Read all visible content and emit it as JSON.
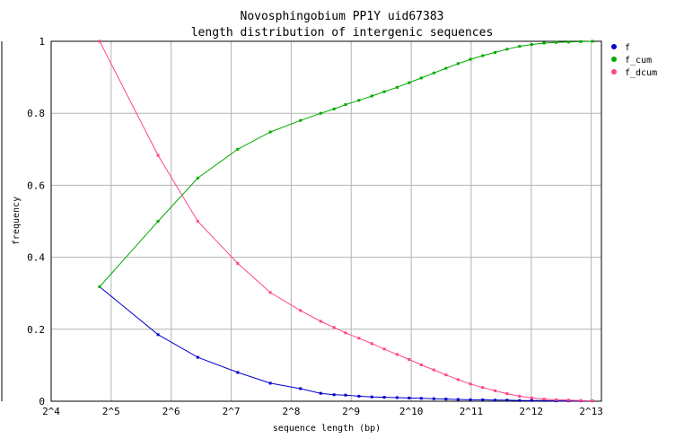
{
  "chart_data": {
    "type": "line",
    "title": [
      "Novosphingobium PP1Y uid67383",
      "length distribution of intergenic sequences"
    ],
    "xlabel": "sequence length (bp)",
    "ylabel": "frequency",
    "x_scale": "log2",
    "xlim": [
      16,
      9216
    ],
    "ylim": [
      0,
      1
    ],
    "x_ticks": [
      {
        "value": 16,
        "label": "2^4"
      },
      {
        "value": 32,
        "label": "2^5"
      },
      {
        "value": 64,
        "label": "2^6"
      },
      {
        "value": 128,
        "label": "2^7"
      },
      {
        "value": 256,
        "label": "2^8"
      },
      {
        "value": 512,
        "label": "2^9"
      },
      {
        "value": 1024,
        "label": "2^10"
      },
      {
        "value": 2048,
        "label": "2^11"
      },
      {
        "value": 4096,
        "label": "2^12"
      },
      {
        "value": 8192,
        "label": "2^13"
      }
    ],
    "y_ticks": [
      {
        "value": 0,
        "label": "0"
      },
      {
        "value": 0.2,
        "label": "0.2"
      },
      {
        "value": 0.4,
        "label": "0.4"
      },
      {
        "value": 0.6,
        "label": "0.6"
      },
      {
        "value": 0.8,
        "label": "0.8"
      },
      {
        "value": 1,
        "label": "1"
      }
    ],
    "grid": true,
    "legend_position": "top-right",
    "series": [
      {
        "name": "f",
        "color": "#0000cc",
        "points": [
          [
            28,
            0.318
          ],
          [
            55,
            0.185
          ],
          [
            87,
            0.122
          ],
          [
            138,
            0.08
          ],
          [
            201,
            0.05
          ],
          [
            285,
            0.035
          ],
          [
            360,
            0.022
          ],
          [
            420,
            0.018
          ],
          [
            480,
            0.017
          ],
          [
            560,
            0.014
          ],
          [
            650,
            0.012
          ],
          [
            750,
            0.011
          ],
          [
            870,
            0.01
          ],
          [
            1000,
            0.009
          ],
          [
            1150,
            0.008
          ],
          [
            1330,
            0.007
          ],
          [
            1530,
            0.006
          ],
          [
            1760,
            0.005
          ],
          [
            2030,
            0.004
          ],
          [
            2340,
            0.004
          ],
          [
            2700,
            0.003
          ],
          [
            3100,
            0.003
          ],
          [
            3580,
            0.002
          ],
          [
            4120,
            0.002
          ],
          [
            4750,
            0.002
          ],
          [
            5470,
            0.001
          ],
          [
            6300,
            0.001
          ],
          [
            7260,
            0.001
          ],
          [
            8300,
            0.001
          ]
        ]
      },
      {
        "name": "f_cum",
        "color": "#00aa00",
        "points": [
          [
            28,
            0.318
          ],
          [
            55,
            0.5
          ],
          [
            87,
            0.62
          ],
          [
            138,
            0.7
          ],
          [
            201,
            0.748
          ],
          [
            285,
            0.78
          ],
          [
            360,
            0.8
          ],
          [
            420,
            0.812
          ],
          [
            480,
            0.824
          ],
          [
            560,
            0.836
          ],
          [
            650,
            0.848
          ],
          [
            750,
            0.86
          ],
          [
            870,
            0.872
          ],
          [
            1000,
            0.885
          ],
          [
            1150,
            0.898
          ],
          [
            1330,
            0.912
          ],
          [
            1530,
            0.925
          ],
          [
            1760,
            0.938
          ],
          [
            2030,
            0.95
          ],
          [
            2340,
            0.96
          ],
          [
            2700,
            0.969
          ],
          [
            3100,
            0.978
          ],
          [
            3580,
            0.986
          ],
          [
            4120,
            0.991
          ],
          [
            4750,
            0.995
          ],
          [
            5470,
            0.997
          ],
          [
            6300,
            0.998
          ],
          [
            7260,
            0.999
          ],
          [
            8300,
            1.0
          ]
        ]
      },
      {
        "name": "f_dcum",
        "color": "#ff4488",
        "points": [
          [
            28,
            1.0
          ],
          [
            55,
            0.683
          ],
          [
            87,
            0.5
          ],
          [
            138,
            0.383
          ],
          [
            201,
            0.302
          ],
          [
            285,
            0.252
          ],
          [
            360,
            0.222
          ],
          [
            420,
            0.205
          ],
          [
            480,
            0.19
          ],
          [
            560,
            0.175
          ],
          [
            650,
            0.16
          ],
          [
            750,
            0.145
          ],
          [
            870,
            0.13
          ],
          [
            1000,
            0.116
          ],
          [
            1150,
            0.101
          ],
          [
            1330,
            0.087
          ],
          [
            1530,
            0.073
          ],
          [
            1760,
            0.06
          ],
          [
            2030,
            0.048
          ],
          [
            2340,
            0.038
          ],
          [
            2700,
            0.029
          ],
          [
            3100,
            0.021
          ],
          [
            3580,
            0.014
          ],
          [
            4120,
            0.009
          ],
          [
            4750,
            0.006
          ],
          [
            5470,
            0.004
          ],
          [
            6300,
            0.003
          ],
          [
            7260,
            0.002
          ],
          [
            8300,
            0.001
          ]
        ]
      }
    ]
  }
}
